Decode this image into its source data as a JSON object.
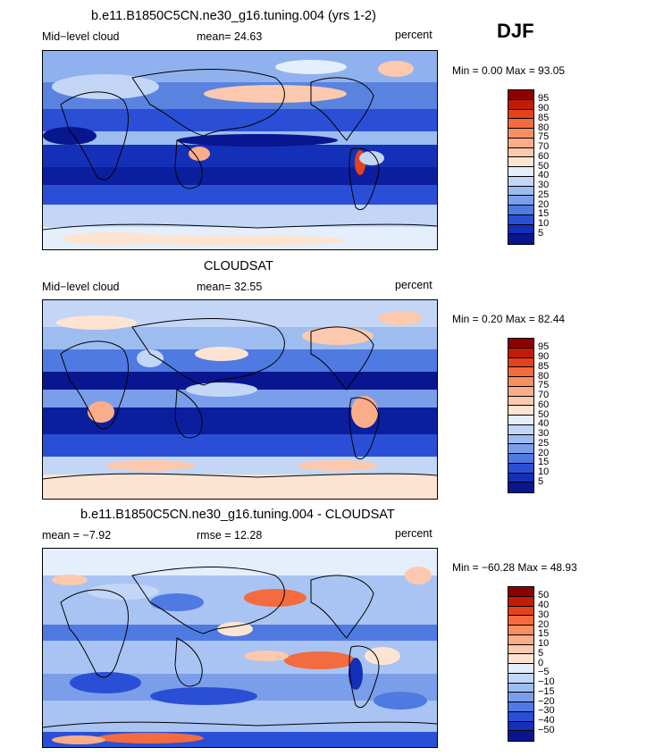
{
  "season": "DJF",
  "panels": [
    {
      "title": "b.e11.B1850C5CN.ne30_g16.tuning.004 (yrs 1-2)",
      "left_label": "Mid−level cloud",
      "center_label": "mean=  24.63",
      "right_label": "percent",
      "minmax": "Min =   0.00 Max =  93.05",
      "colorbar": {
        "labels": [
          "95",
          "90",
          "85",
          "80",
          "75",
          "70",
          "60",
          "50",
          "40",
          "30",
          "25",
          "20",
          "15",
          "10",
          "5"
        ],
        "colors": [
          "#8e0000",
          "#c41b05",
          "#e4421b",
          "#f36b3e",
          "#f88f63",
          "#fbad8a",
          "#fcc9ae",
          "#fde4d2",
          "#e5eefb",
          "#c3d6f6",
          "#9dbcf0",
          "#7a9eea",
          "#4f7ae2",
          "#2a4fd6",
          "#1530b8",
          "#081690"
        ]
      }
    },
    {
      "title": "CLOUDSAT",
      "left_label": "Mid−level cloud",
      "center_label": "mean=  32.55",
      "right_label": "percent",
      "minmax": "Min =   0.20 Max =  82.44",
      "colorbar": {
        "labels": [
          "95",
          "90",
          "85",
          "80",
          "75",
          "70",
          "60",
          "50",
          "40",
          "30",
          "25",
          "20",
          "15",
          "10",
          "5"
        ],
        "colors": [
          "#8e0000",
          "#c41b05",
          "#e4421b",
          "#f36b3e",
          "#f88f63",
          "#fbad8a",
          "#fcc9ae",
          "#fde4d2",
          "#e5eefb",
          "#c3d6f6",
          "#9dbcf0",
          "#7a9eea",
          "#4f7ae2",
          "#2a4fd6",
          "#1530b8",
          "#081690"
        ]
      }
    },
    {
      "title": "b.e11.B1850C5CN.ne30_g16.tuning.004 - CLOUDSAT",
      "left_label": "mean =   −7.92",
      "center_label": "rmse =   12.28",
      "right_label": "percent",
      "minmax": "Min = −60.28 Max =  48.93",
      "colorbar": {
        "labels": [
          "50",
          "40",
          "30",
          "20",
          "15",
          "10",
          "5",
          "0",
          "−5",
          "−10",
          "−15",
          "−20",
          "−30",
          "−40",
          "−50"
        ],
        "colors": [
          "#8e0000",
          "#c41b05",
          "#e4421b",
          "#f36b3e",
          "#f88f63",
          "#fbad8a",
          "#fcc9ae",
          "#fde4d2",
          "#e5eefb",
          "#c3d6f6",
          "#9dbcf0",
          "#7a9eea",
          "#4f7ae2",
          "#2a4fd6",
          "#1530b8",
          "#081690"
        ]
      }
    }
  ]
}
